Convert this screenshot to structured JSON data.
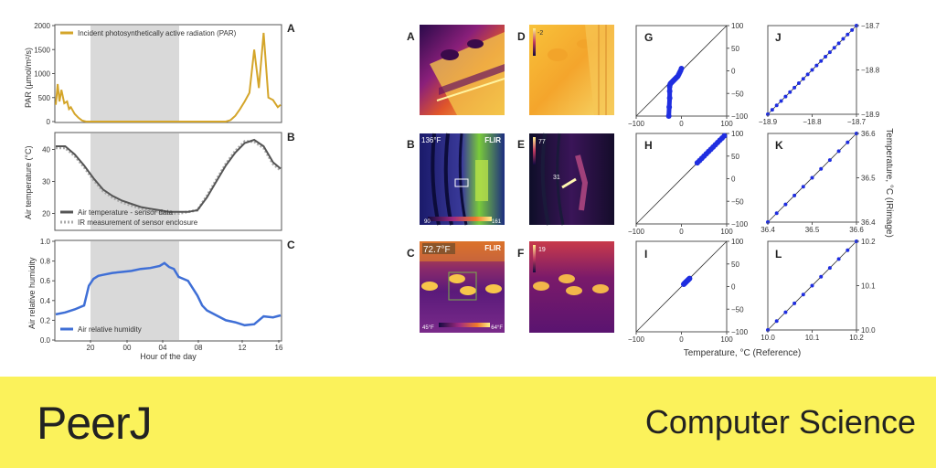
{
  "footer": {
    "logo": "PeerJ",
    "section": "Computer Science"
  },
  "colors": {
    "par": "#d4a52a",
    "temp_line": "#555555",
    "humidity": "#3f6fd6",
    "scatter": "#1f2ee0",
    "night_shade": "#d9d9d9",
    "banner": "#fbf25b"
  },
  "panel_labels": [
    "A",
    "B",
    "C",
    "D",
    "E",
    "F",
    "G",
    "H",
    "I",
    "J",
    "K",
    "L"
  ],
  "thermal": {
    "b_top": "136°F",
    "b_brand": "FLIR",
    "b_min": "90",
    "b_max": "161",
    "c_top": "72.7°F",
    "c_brand": "FLIR",
    "c_min": "45°F",
    "c_max": "64°F",
    "d_top": "-2",
    "e_top": "77",
    "e_mid": "31",
    "f_top": "19"
  },
  "chart_data": [
    {
      "type": "line",
      "panel": "A",
      "ylabel": "PAR (µmol/m²/s)",
      "ylim": [
        0,
        2000
      ],
      "yticks": [
        "0",
        "500",
        "1000",
        "1500",
        "2000"
      ],
      "series": [
        {
          "name": "Incident photosynthetically active radiation (PAR)",
          "x": [
            0,
            1,
            2,
            4,
            6,
            9,
            12,
            14,
            16,
            20,
            24,
            28,
            32,
            36,
            40,
            44,
            48,
            52,
            56,
            60,
            64,
            68,
            72,
            76,
            80,
            84,
            88,
            92,
            96,
            100,
            105,
            110,
            115,
            120,
            125,
            130,
            135,
            140,
            145,
            150,
            155,
            160,
            165,
            170,
            175,
            180,
            185,
            190,
            195,
            200,
            205,
            210,
            215,
            220,
            225,
            230,
            235,
            238
          ],
          "y": [
            350,
            550,
            780,
            420,
            660,
            380,
            420,
            260,
            300,
            160,
            80,
            20,
            0,
            0,
            0,
            0,
            0,
            0,
            0,
            0,
            0,
            0,
            0,
            0,
            0,
            0,
            0,
            0,
            0,
            0,
            0,
            0,
            0,
            0,
            0,
            0,
            0,
            0,
            0,
            0,
            0,
            0,
            0,
            0,
            0,
            0,
            30,
            120,
            260,
            420,
            600,
            1500,
            700,
            1850,
            500,
            450,
            300,
            350
          ]
        }
      ]
    },
    {
      "type": "line",
      "panel": "B",
      "ylabel": "Air temperature (°C)",
      "ylim": [
        15,
        45
      ],
      "yticks": [
        "20",
        "30",
        "40"
      ],
      "series": [
        {
          "name": "Air temperature - sensor data",
          "x": [
            0,
            10,
            20,
            30,
            40,
            50,
            60,
            70,
            80,
            90,
            100,
            110,
            120,
            130,
            140,
            150,
            160,
            170,
            180,
            190,
            200,
            210,
            220,
            230,
            238
          ],
          "y": [
            41,
            41,
            38.5,
            35,
            31,
            27.5,
            25.5,
            24,
            23,
            22,
            21.5,
            21,
            20.5,
            20.5,
            20.5,
            21,
            25,
            30,
            35,
            39,
            42,
            43,
            41,
            36,
            34
          ]
        },
        {
          "name": "IR measurement of sensor enclosure",
          "x": [
            0,
            10,
            20,
            30,
            40,
            50,
            60,
            70,
            80,
            90,
            100,
            110,
            120,
            130,
            140,
            150,
            160,
            170,
            180,
            190,
            200,
            210,
            220,
            230,
            238
          ],
          "y": [
            40.5,
            40.5,
            38,
            34.5,
            30.5,
            27,
            25,
            23.5,
            22.5,
            21.5,
            21,
            20.5,
            20,
            20,
            20.5,
            21,
            25.5,
            30.5,
            35.5,
            39.5,
            42.5,
            42.5,
            40.5,
            35.5,
            33.5
          ]
        }
      ]
    },
    {
      "type": "line",
      "panel": "C",
      "ylabel": "Air relative humidity",
      "xlabel": "Hour of the day",
      "ylim": [
        0,
        1.0
      ],
      "yticks": [
        "0.0",
        "0.2",
        "0.4",
        "0.6",
        "0.8",
        "1.0"
      ],
      "xticks": [
        "20",
        "00",
        "04",
        "08",
        "12",
        "16"
      ],
      "series": [
        {
          "name": "Air relative humidity",
          "x": [
            0,
            10,
            20,
            30,
            35,
            40,
            45,
            50,
            60,
            70,
            80,
            90,
            100,
            110,
            115,
            120,
            125,
            130,
            140,
            150,
            155,
            160,
            170,
            180,
            190,
            200,
            210,
            220,
            230,
            238
          ],
          "y": [
            0.26,
            0.28,
            0.31,
            0.35,
            0.55,
            0.62,
            0.65,
            0.66,
            0.68,
            0.69,
            0.7,
            0.72,
            0.73,
            0.75,
            0.78,
            0.74,
            0.72,
            0.64,
            0.6,
            0.45,
            0.35,
            0.3,
            0.25,
            0.2,
            0.18,
            0.15,
            0.16,
            0.24,
            0.23,
            0.25
          ]
        }
      ],
      "night_band": [
        35,
        135
      ]
    },
    {
      "type": "scatter",
      "panel": "G",
      "xlim": [
        -100,
        100
      ],
      "ylim": [
        -100,
        100
      ],
      "ticks": [
        "−100",
        "0",
        "100"
      ],
      "yticks_right": [
        "100",
        "50",
        "0",
        "−50",
        "−100"
      ],
      "x": [
        -28,
        -27,
        -26,
        -26,
        -26,
        -25,
        -24,
        -22,
        -20,
        -18,
        -16,
        -14,
        -12,
        -10,
        -8,
        -6,
        -4,
        -2,
        0
      ],
      "y": [
        -100,
        -80,
        -60,
        -45,
        -35,
        -30,
        -28,
        -26,
        -24,
        -22,
        -20,
        -18,
        -16,
        -14,
        -12,
        -8,
        -4,
        0,
        5
      ]
    },
    {
      "type": "scatter",
      "panel": "H",
      "xlim": [
        -100,
        100
      ],
      "ylim": [
        -100,
        100
      ],
      "ticks": [
        "−100",
        "0",
        "100"
      ],
      "yticks_right": [
        "100",
        "50",
        "0",
        "−50",
        "−100"
      ],
      "x": [
        35,
        40,
        45,
        50,
        55,
        60,
        65,
        70,
        75,
        80,
        85,
        90,
        95
      ],
      "y": [
        35,
        40,
        45,
        50,
        55,
        60,
        65,
        70,
        75,
        80,
        85,
        90,
        95
      ]
    },
    {
      "type": "scatter",
      "panel": "I",
      "xlim": [
        -100,
        100
      ],
      "ylim": [
        -100,
        100
      ],
      "ticks": [
        "−100",
        "0",
        "100"
      ],
      "yticks_right": [
        "100",
        "50",
        "0",
        "−50",
        "−100"
      ],
      "x": [
        5,
        6,
        7,
        8,
        9,
        10,
        11,
        12,
        13,
        14,
        15,
        16,
        17,
        18
      ],
      "y": [
        5,
        6,
        7,
        8,
        9,
        10,
        11,
        12,
        13,
        14,
        15,
        16,
        17,
        18
      ],
      "xlabel": "Temperature, °C (Reference)"
    },
    {
      "type": "scatter",
      "panel": "J",
      "xlim": [
        -18.9,
        -18.7
      ],
      "ylim": [
        -18.9,
        -18.7
      ],
      "xticks": [
        "−18.9",
        "−18.8",
        "−18.7"
      ],
      "yticks_right": [
        "−18.7",
        "−18.8",
        "−18.9"
      ],
      "x": [
        -18.9,
        -18.89,
        -18.88,
        -18.87,
        -18.86,
        -18.85,
        -18.84,
        -18.83,
        -18.82,
        -18.81,
        -18.8,
        -18.79,
        -18.78,
        -18.77,
        -18.76,
        -18.75,
        -18.74,
        -18.73,
        -18.72,
        -18.71,
        -18.7
      ],
      "y": [
        -18.9,
        -18.89,
        -18.88,
        -18.87,
        -18.86,
        -18.85,
        -18.84,
        -18.83,
        -18.82,
        -18.81,
        -18.8,
        -18.79,
        -18.78,
        -18.77,
        -18.76,
        -18.75,
        -18.74,
        -18.73,
        -18.72,
        -18.71,
        -18.7
      ]
    },
    {
      "type": "scatter",
      "panel": "K",
      "xlim": [
        36.4,
        36.6
      ],
      "ylim": [
        36.4,
        36.6
      ],
      "xticks": [
        "36.4",
        "36.5",
        "36.6"
      ],
      "yticks_right": [
        "36.6",
        "36.5",
        "36.4"
      ],
      "ylabel_right": "Temperature, °C (IRimage)",
      "x": [
        36.4,
        36.42,
        36.44,
        36.46,
        36.48,
        36.5,
        36.52,
        36.54,
        36.56,
        36.58,
        36.6
      ],
      "y": [
        36.4,
        36.42,
        36.44,
        36.46,
        36.48,
        36.5,
        36.52,
        36.54,
        36.56,
        36.58,
        36.6
      ]
    },
    {
      "type": "scatter",
      "panel": "L",
      "xlim": [
        10.0,
        10.2
      ],
      "ylim": [
        10.0,
        10.2
      ],
      "xticks": [
        "10.0",
        "10.1",
        "10.2"
      ],
      "yticks_right": [
        "10.2",
        "10.1",
        "10.0"
      ],
      "x": [
        10.0,
        10.02,
        10.04,
        10.06,
        10.08,
        10.1,
        10.12,
        10.14,
        10.16,
        10.18,
        10.2
      ],
      "y": [
        10.0,
        10.02,
        10.04,
        10.06,
        10.08,
        10.1,
        10.12,
        10.14,
        10.16,
        10.18,
        10.2
      ]
    }
  ]
}
